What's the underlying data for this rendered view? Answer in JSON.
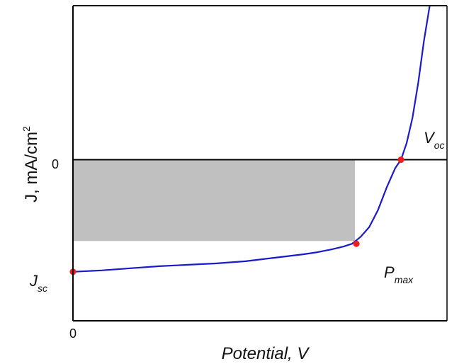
{
  "chart_data": {
    "type": "line",
    "title": "",
    "xlabel": "Potential, V",
    "ylabel_main": "J, mA/cm",
    "ylabel_sup": "2",
    "x_tick_labels": [
      "0"
    ],
    "y_tick_labels": [
      "0"
    ],
    "xlim": [
      0,
      1.3
    ],
    "ylim": [
      -1.15,
      1.1
    ],
    "grid": false,
    "series": [
      {
        "color": "#1a1acc",
        "points": [
          [
            0.0,
            -0.8
          ],
          [
            0.1,
            -0.79
          ],
          [
            0.2,
            -0.775
          ],
          [
            0.3,
            -0.76
          ],
          [
            0.4,
            -0.75
          ],
          [
            0.5,
            -0.74
          ],
          [
            0.6,
            -0.725
          ],
          [
            0.7,
            -0.7
          ],
          [
            0.8,
            -0.675
          ],
          [
            0.85,
            -0.66
          ],
          [
            0.9,
            -0.64
          ],
          [
            0.94,
            -0.62
          ],
          [
            0.97,
            -0.6
          ],
          [
            1.0,
            -0.55
          ],
          [
            1.03,
            -0.48
          ],
          [
            1.06,
            -0.36
          ],
          [
            1.09,
            -0.2
          ],
          [
            1.12,
            -0.06
          ],
          [
            1.14,
            0.0
          ],
          [
            1.16,
            0.12
          ],
          [
            1.18,
            0.3
          ],
          [
            1.2,
            0.55
          ],
          [
            1.22,
            0.85
          ],
          [
            1.24,
            1.1
          ]
        ]
      }
    ],
    "fill_region": {
      "x": [
        0,
        0.98
      ],
      "y": [
        -0.58,
        0
      ],
      "color": "#c0c0c0"
    },
    "zero_line": true,
    "highlight_points": [
      {
        "name": "jsc",
        "x": 0.0,
        "y": -0.8,
        "color": "#ee1c1c"
      },
      {
        "name": "pmax",
        "x": 0.985,
        "y": -0.6,
        "color": "#ee1c1c"
      },
      {
        "name": "voc",
        "x": 1.14,
        "y": 0.0,
        "color": "#ee1c1c"
      }
    ],
    "annotations": [
      {
        "name": "voc",
        "main": "V",
        "sub": "oc"
      },
      {
        "name": "pmax",
        "main": "P",
        "sub": "max"
      },
      {
        "name": "jsc",
        "main": "J",
        "sub": "sc"
      }
    ]
  }
}
